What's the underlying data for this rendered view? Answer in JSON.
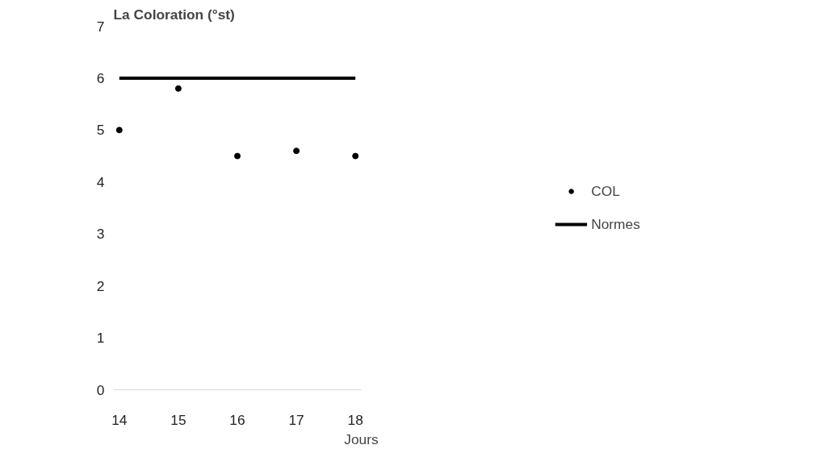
{
  "chart_data": {
    "type": "scatter",
    "ylabel": "La Coloration (°st)",
    "xlabel": "Jours",
    "x": [
      14,
      15,
      16,
      17,
      18
    ],
    "series": [
      {
        "name": "COL",
        "color": "#000000",
        "marker": "circle",
        "values": [
          5.0,
          5.8,
          4.5,
          4.6,
          4.5
        ]
      },
      {
        "name": "Normes",
        "type": "line",
        "color": "#000000",
        "x": [
          14,
          18
        ],
        "values": [
          6,
          6
        ]
      }
    ],
    "xlim": [
      13.9,
      18.1
    ],
    "xticks": [
      14,
      15,
      16,
      17,
      18
    ],
    "ylim": [
      0,
      7
    ],
    "yticks": [
      0,
      1,
      2,
      3,
      4,
      5,
      6,
      7
    ],
    "grid": false,
    "legend": "right"
  }
}
